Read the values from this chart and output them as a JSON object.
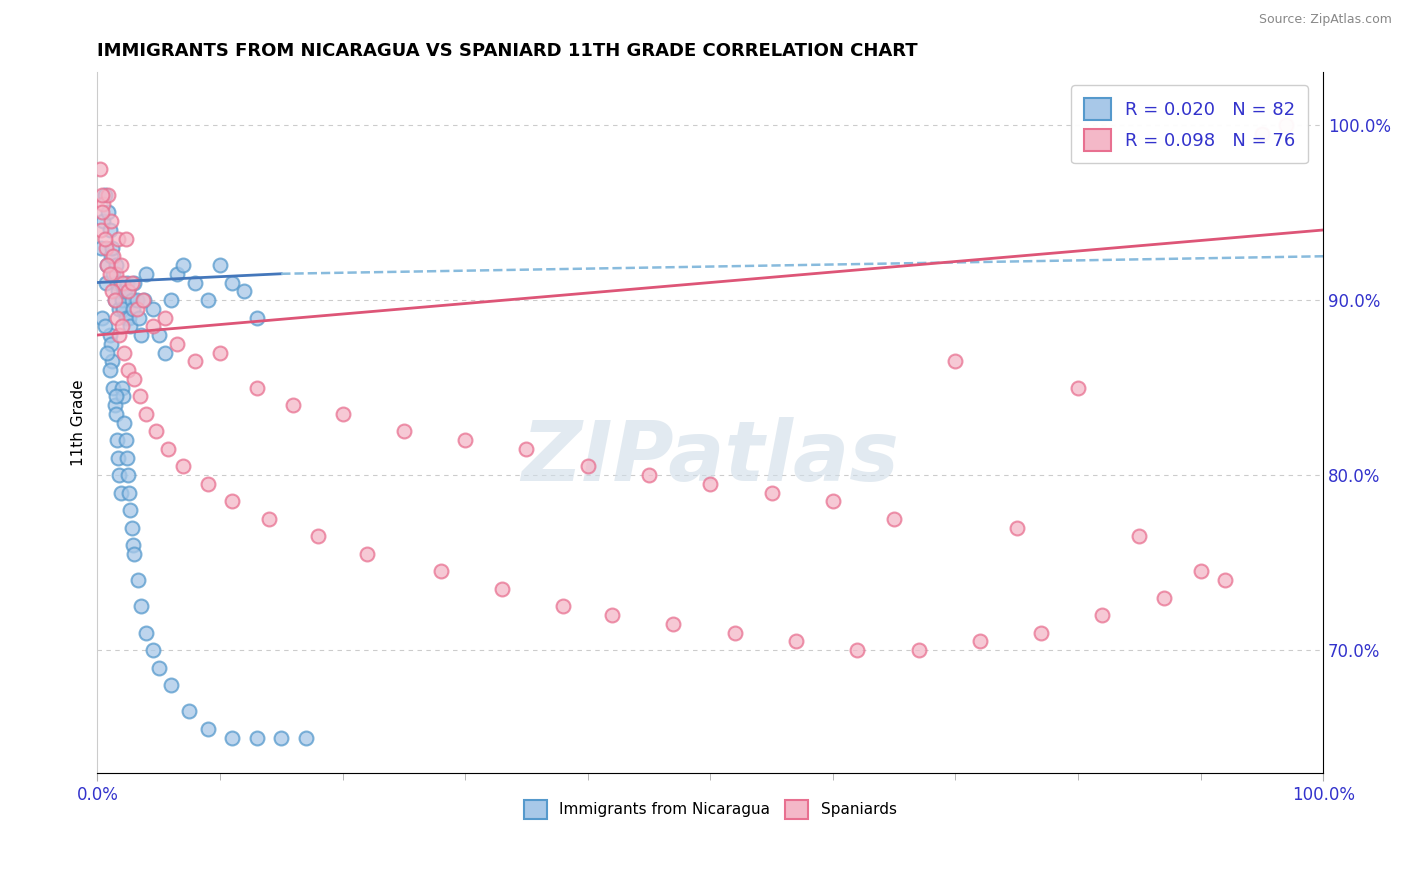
{
  "title": "IMMIGRANTS FROM NICARAGUA VS SPANIARD 11TH GRADE CORRELATION CHART",
  "source_text": "Source: ZipAtlas.com",
  "ylabel": "11th Grade",
  "watermark": "ZIPatlas",
  "blue_color": "#a8c8e8",
  "pink_color": "#f4b8c8",
  "blue_edge_color": "#5599cc",
  "pink_edge_color": "#e87090",
  "blue_trend_color": "#4477bb",
  "pink_trend_color": "#dd5577",
  "blue_dash_color": "#88bbdd",
  "r_n_color": "#3333cc",
  "xmin": 0.0,
  "xmax": 100.0,
  "ymin": 63.0,
  "ymax": 103.0,
  "blue_x": [
    0.3,
    0.5,
    0.6,
    0.7,
    0.8,
    0.9,
    1.0,
    1.1,
    1.2,
    1.3,
    1.4,
    1.5,
    1.6,
    1.7,
    1.8,
    1.9,
    2.0,
    2.1,
    2.2,
    2.3,
    2.4,
    2.5,
    2.6,
    2.7,
    2.8,
    2.9,
    3.0,
    3.2,
    3.4,
    3.6,
    3.8,
    4.0,
    4.5,
    5.0,
    5.5,
    6.0,
    6.5,
    7.0,
    8.0,
    9.0,
    10.0,
    11.0,
    12.0,
    13.0,
    1.0,
    1.1,
    1.2,
    1.3,
    1.4,
    1.5,
    1.6,
    1.7,
    1.8,
    1.9,
    2.0,
    2.1,
    2.2,
    2.3,
    2.4,
    2.5,
    2.6,
    2.7,
    2.8,
    2.9,
    3.0,
    3.3,
    3.6,
    4.0,
    4.5,
    5.0,
    6.0,
    7.5,
    9.0,
    11.0,
    13.0,
    15.0,
    17.0,
    0.4,
    0.6,
    0.8,
    1.0,
    1.5
  ],
  "blue_y": [
    93.0,
    94.5,
    96.0,
    91.0,
    92.0,
    95.0,
    94.0,
    92.5,
    93.0,
    91.5,
    90.0,
    92.0,
    91.0,
    90.5,
    89.5,
    91.0,
    90.0,
    89.5,
    90.5,
    89.0,
    91.0,
    90.5,
    89.0,
    88.5,
    90.0,
    89.5,
    91.0,
    90.0,
    89.0,
    88.0,
    90.0,
    91.5,
    89.5,
    88.0,
    87.0,
    90.0,
    91.5,
    92.0,
    91.0,
    90.0,
    92.0,
    91.0,
    90.5,
    89.0,
    88.0,
    87.5,
    86.5,
    85.0,
    84.0,
    83.5,
    82.0,
    81.0,
    80.0,
    79.0,
    85.0,
    84.5,
    83.0,
    82.0,
    81.0,
    80.0,
    79.0,
    78.0,
    77.0,
    76.0,
    75.5,
    74.0,
    72.5,
    71.0,
    70.0,
    69.0,
    68.0,
    66.5,
    65.5,
    65.0,
    65.0,
    65.0,
    65.0,
    89.0,
    88.5,
    87.0,
    86.0,
    84.5
  ],
  "pink_x": [
    0.3,
    0.5,
    0.7,
    0.9,
    1.1,
    1.3,
    1.5,
    1.7,
    1.9,
    2.1,
    2.3,
    2.5,
    2.8,
    3.2,
    3.7,
    4.5,
    5.5,
    6.5,
    8.0,
    10.0,
    13.0,
    16.0,
    20.0,
    25.0,
    30.0,
    35.0,
    40.0,
    45.0,
    50.0,
    55.0,
    60.0,
    65.0,
    70.0,
    75.0,
    80.0,
    85.0,
    90.0,
    95.0,
    0.4,
    0.6,
    0.8,
    1.0,
    1.2,
    1.4,
    1.6,
    1.8,
    2.0,
    2.2,
    2.5,
    3.0,
    3.5,
    4.0,
    4.8,
    5.8,
    7.0,
    9.0,
    11.0,
    14.0,
    18.0,
    22.0,
    28.0,
    33.0,
    38.0,
    42.0,
    47.0,
    52.0,
    57.0,
    62.0,
    67.0,
    72.0,
    77.0,
    82.0,
    87.0,
    92.0,
    97.0,
    0.2,
    0.35
  ],
  "pink_y": [
    94.0,
    95.5,
    93.0,
    96.0,
    94.5,
    92.5,
    91.5,
    93.5,
    92.0,
    91.0,
    93.5,
    90.5,
    91.0,
    89.5,
    90.0,
    88.5,
    89.0,
    87.5,
    86.5,
    87.0,
    85.0,
    84.0,
    83.5,
    82.5,
    82.0,
    81.5,
    80.5,
    80.0,
    79.5,
    79.0,
    78.5,
    77.5,
    86.5,
    77.0,
    85.0,
    76.5,
    74.5,
    99.5,
    95.0,
    93.5,
    92.0,
    91.5,
    90.5,
    90.0,
    89.0,
    88.0,
    88.5,
    87.0,
    86.0,
    85.5,
    84.5,
    83.5,
    82.5,
    81.5,
    80.5,
    79.5,
    78.5,
    77.5,
    76.5,
    75.5,
    74.5,
    73.5,
    72.5,
    72.0,
    71.5,
    71.0,
    70.5,
    70.0,
    70.0,
    70.5,
    71.0,
    72.0,
    73.0,
    74.0,
    100.0,
    97.5,
    96.0
  ]
}
